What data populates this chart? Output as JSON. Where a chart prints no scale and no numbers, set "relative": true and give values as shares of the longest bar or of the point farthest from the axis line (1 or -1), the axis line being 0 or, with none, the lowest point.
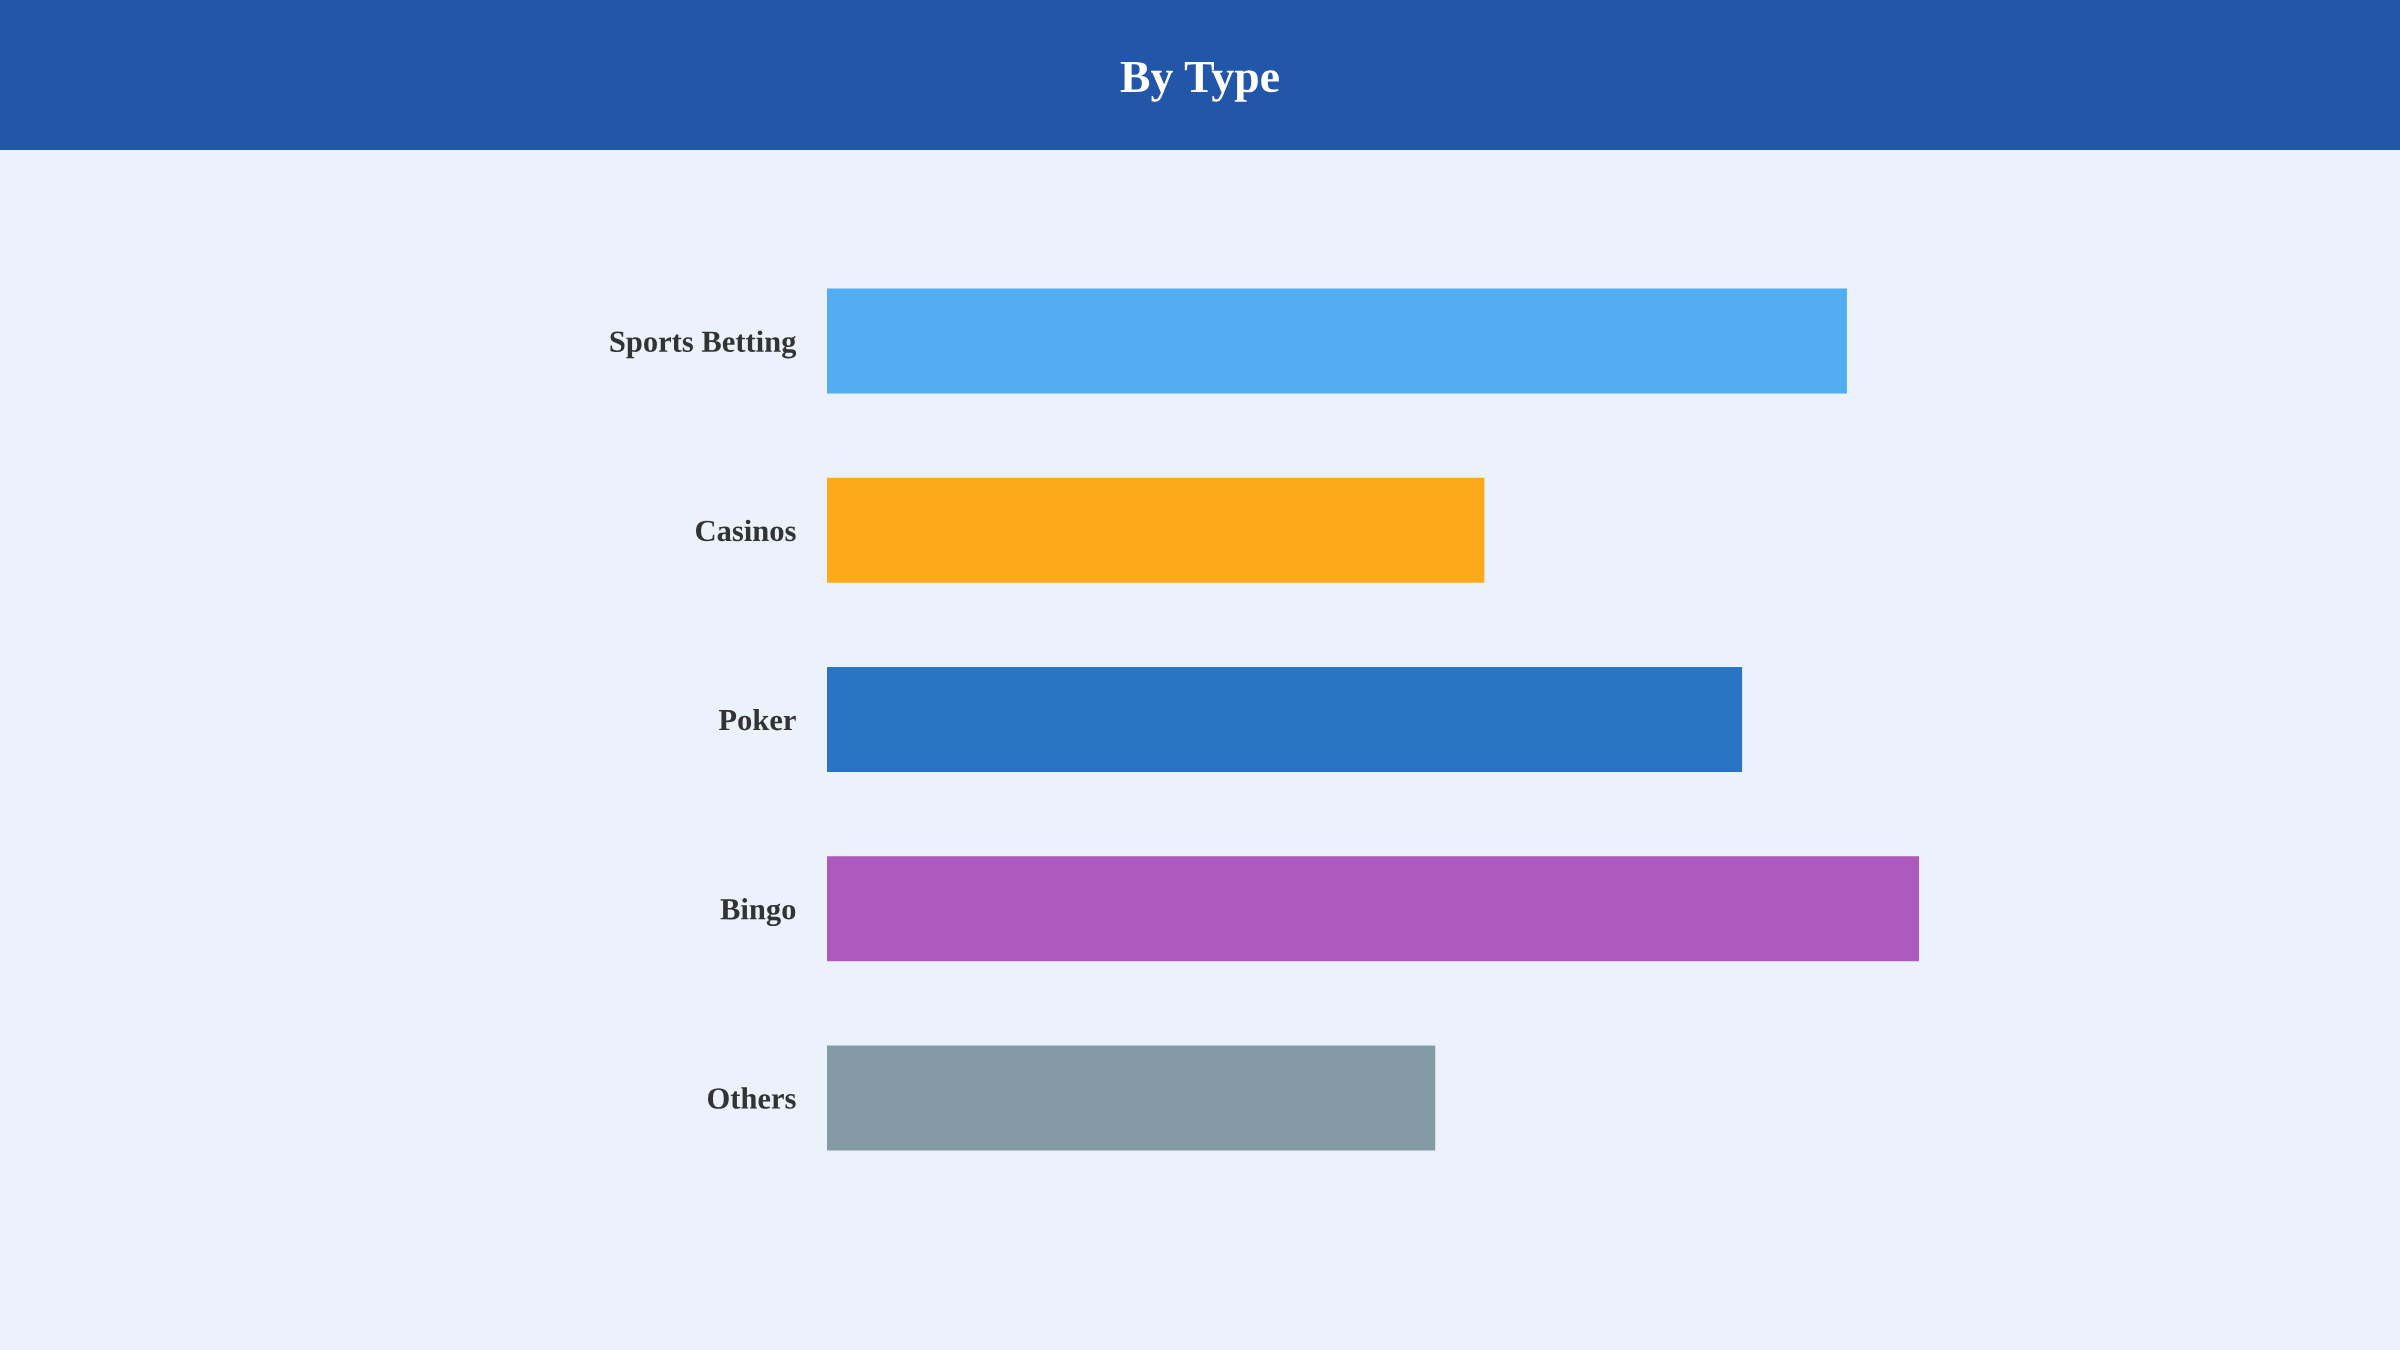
{
  "chart_data": {
    "type": "bar",
    "orientation": "horizontal",
    "relative": true,
    "title": "By Type",
    "categories": [
      "Sports Betting",
      "Casinos",
      "Poker",
      "Bingo",
      "Others"
    ],
    "values": [
      0.934,
      0.602,
      0.838,
      1,
      0.557
    ],
    "colors": [
      "#52adf2",
      "#fca91a",
      "#2a74c4",
      "#ae59be",
      "#849ba5"
    ]
  }
}
